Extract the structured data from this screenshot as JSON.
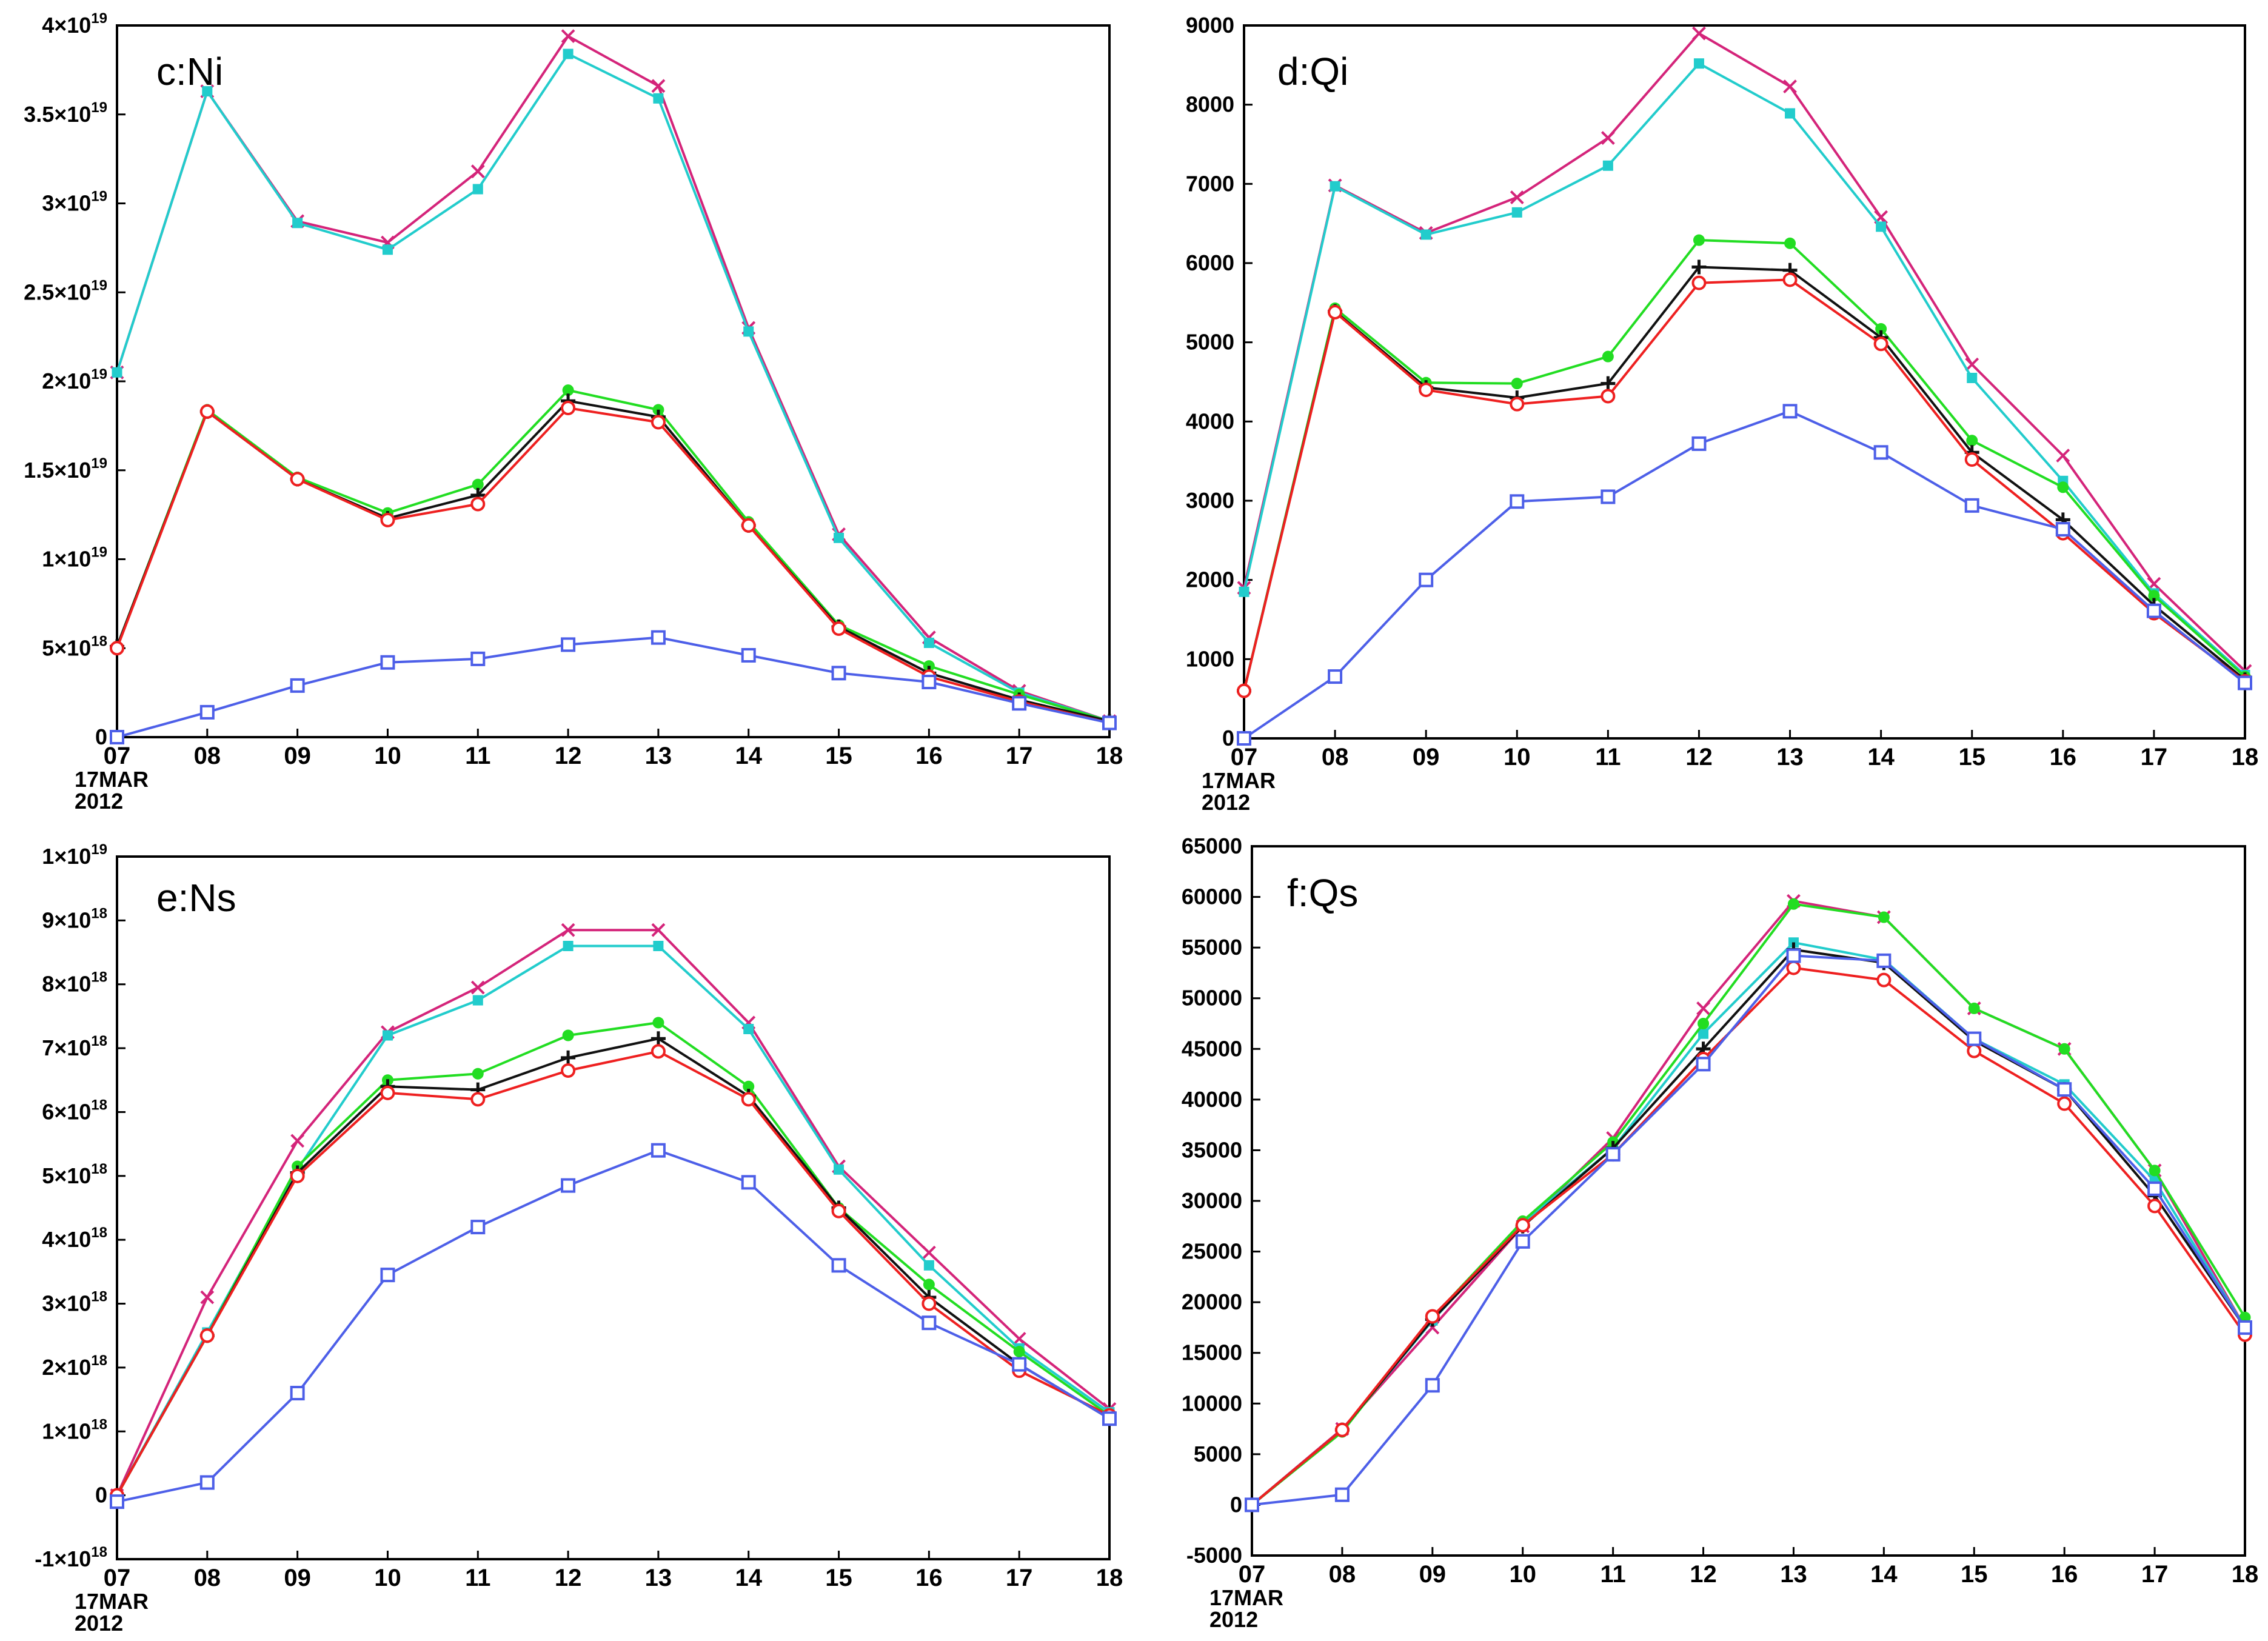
{
  "styles": {
    "series_colors": {
      "blue": "#4d5fe8",
      "red": "#ee2020",
      "black": "#111111",
      "green": "#22dd22",
      "cyan": "#22cccc",
      "magenta": "#d4247a"
    },
    "series_markers": {
      "blue": "square",
      "red": "circle",
      "black": "plus",
      "green": "dot",
      "cyan": "filled-square",
      "magenta": "x"
    }
  },
  "chart_data": [
    {
      "id": "c",
      "type": "line",
      "panel_label": "c:Ni",
      "x_ticks": [
        "07",
        "08",
        "09",
        "10",
        "11",
        "12",
        "13",
        "14",
        "15",
        "16",
        "17",
        "18"
      ],
      "x_date_line1": "17MAR",
      "x_date_line2": "2012",
      "ylim": [
        0,
        4e+19
      ],
      "y_ticks": [
        {
          "v": 0,
          "base": "0",
          "exp": ""
        },
        {
          "v": 5e+18,
          "base": "5×10",
          "exp": "18"
        },
        {
          "v": 1e+19,
          "base": "1×10",
          "exp": "19"
        },
        {
          "v": 1.5e+19,
          "base": "1.5×10",
          "exp": "19"
        },
        {
          "v": 2e+19,
          "base": "2×10",
          "exp": "19"
        },
        {
          "v": 2.5e+19,
          "base": "2.5×10",
          "exp": "19"
        },
        {
          "v": 3e+19,
          "base": "3×10",
          "exp": "19"
        },
        {
          "v": 3.5e+19,
          "base": "3.5×10",
          "exp": "19"
        },
        {
          "v": 4e+19,
          "base": "4×10",
          "exp": "19"
        }
      ],
      "series": [
        {
          "key": "magenta",
          "values": [
            2.05e+19,
            3.63e+19,
            2.9e+19,
            2.78e+19,
            3.18e+19,
            3.94e+19,
            3.66e+19,
            2.3e+19,
            1.14e+19,
            5.6e+18,
            2.6e+18,
            9e+17
          ]
        },
        {
          "key": "cyan",
          "values": [
            2.05e+19,
            3.63e+19,
            2.89e+19,
            2.74e+19,
            3.08e+19,
            3.84e+19,
            3.59e+19,
            2.28e+19,
            1.12e+19,
            5.3e+18,
            2.5e+18,
            9e+17
          ]
        },
        {
          "key": "green",
          "values": [
            5.1e+18,
            1.84e+19,
            1.46e+19,
            1.26e+19,
            1.42e+19,
            1.95e+19,
            1.84e+19,
            1.21e+19,
            6.3e+18,
            4e+18,
            2.4e+18,
            9e+17
          ]
        },
        {
          "key": "black",
          "values": [
            5.1e+18,
            1.83e+19,
            1.45e+19,
            1.23e+19,
            1.36e+19,
            1.89e+19,
            1.8e+19,
            1.19e+19,
            6.2e+18,
            3.6e+18,
            2.1e+18,
            9e+17
          ]
        },
        {
          "key": "red",
          "values": [
            5e+18,
            1.83e+19,
            1.45e+19,
            1.22e+19,
            1.31e+19,
            1.85e+19,
            1.77e+19,
            1.19e+19,
            6.1e+18,
            3.4e+18,
            2e+18,
            8e+17
          ]
        },
        {
          "key": "blue",
          "values": [
            0,
            1.4e+18,
            2.9e+18,
            4.2e+18,
            4.4e+18,
            5.2e+18,
            5.6e+18,
            4.6e+18,
            3.6e+18,
            3.1e+18,
            1.9e+18,
            8e+17
          ]
        }
      ]
    },
    {
      "id": "d",
      "type": "line",
      "panel_label": "d:Qi",
      "x_ticks": [
        "07",
        "08",
        "09",
        "10",
        "11",
        "12",
        "13",
        "14",
        "15",
        "16",
        "17",
        "18"
      ],
      "x_date_line1": "17MAR",
      "x_date_line2": "2012",
      "ylim": [
        0,
        9000
      ],
      "y_ticks": [
        {
          "v": 0,
          "base": "0",
          "exp": ""
        },
        {
          "v": 1000,
          "base": "1000",
          "exp": ""
        },
        {
          "v": 2000,
          "base": "2000",
          "exp": ""
        },
        {
          "v": 3000,
          "base": "3000",
          "exp": ""
        },
        {
          "v": 4000,
          "base": "4000",
          "exp": ""
        },
        {
          "v": 5000,
          "base": "5000",
          "exp": ""
        },
        {
          "v": 6000,
          "base": "6000",
          "exp": ""
        },
        {
          "v": 7000,
          "base": "7000",
          "exp": ""
        },
        {
          "v": 8000,
          "base": "8000",
          "exp": ""
        },
        {
          "v": 9000,
          "base": "9000",
          "exp": ""
        }
      ],
      "series": [
        {
          "key": "magenta",
          "values": [
            1900,
            6980,
            6380,
            6830,
            7580,
            8900,
            8230,
            6580,
            4720,
            3570,
            1950,
            850
          ]
        },
        {
          "key": "cyan",
          "values": [
            1850,
            6970,
            6360,
            6640,
            7230,
            8520,
            7890,
            6460,
            4550,
            3250,
            1830,
            800
          ]
        },
        {
          "key": "green",
          "values": [
            600,
            5430,
            4490,
            4480,
            4820,
            6290,
            6250,
            5170,
            3760,
            3170,
            1800,
            780
          ]
        },
        {
          "key": "black",
          "values": [
            600,
            5390,
            4430,
            4300,
            4480,
            5950,
            5910,
            5060,
            3610,
            2760,
            1680,
            740
          ]
        },
        {
          "key": "red",
          "values": [
            600,
            5380,
            4400,
            4220,
            4320,
            5750,
            5790,
            4980,
            3520,
            2590,
            1580,
            720
          ]
        },
        {
          "key": "blue",
          "values": [
            0,
            780,
            2000,
            2990,
            3050,
            3720,
            4130,
            3610,
            2940,
            2640,
            1610,
            700
          ]
        }
      ]
    },
    {
      "id": "e",
      "type": "line",
      "panel_label": "e:Ns",
      "x_ticks": [
        "07",
        "08",
        "09",
        "10",
        "11",
        "12",
        "13",
        "14",
        "15",
        "16",
        "17",
        "18"
      ],
      "x_date_line1": "17MAR",
      "x_date_line2": "2012",
      "ylim": [
        -1e+18,
        1e+19
      ],
      "y_ticks": [
        {
          "v": -1e+18,
          "base": "-1×10",
          "exp": "18"
        },
        {
          "v": 0,
          "base": "0",
          "exp": ""
        },
        {
          "v": 1e+18,
          "base": "1×10",
          "exp": "18"
        },
        {
          "v": 2e+18,
          "base": "2×10",
          "exp": "18"
        },
        {
          "v": 3e+18,
          "base": "3×10",
          "exp": "18"
        },
        {
          "v": 4e+18,
          "base": "4×10",
          "exp": "18"
        },
        {
          "v": 5e+18,
          "base": "5×10",
          "exp": "18"
        },
        {
          "v": 6e+18,
          "base": "6×10",
          "exp": "18"
        },
        {
          "v": 7e+18,
          "base": "7×10",
          "exp": "18"
        },
        {
          "v": 8e+18,
          "base": "8×10",
          "exp": "18"
        },
        {
          "v": 9e+18,
          "base": "9×10",
          "exp": "18"
        },
        {
          "v": 1e+19,
          "base": "1×10",
          "exp": "19"
        }
      ],
      "series": [
        {
          "key": "magenta",
          "values": [
            0,
            3.1e+18,
            5.55e+18,
            7.25e+18,
            7.95e+18,
            8.85e+18,
            8.85e+18,
            7.4e+18,
            5.15e+18,
            3.8e+18,
            2.45e+18,
            1.35e+18
          ]
        },
        {
          "key": "cyan",
          "values": [
            0,
            2.55e+18,
            5.1e+18,
            7.2e+18,
            7.75e+18,
            8.6e+18,
            8.6e+18,
            7.3e+18,
            5.1e+18,
            3.6e+18,
            2.3e+18,
            1.3e+18
          ]
        },
        {
          "key": "green",
          "values": [
            0,
            2.5e+18,
            5.15e+18,
            6.5e+18,
            6.6e+18,
            7.2e+18,
            7.4e+18,
            6.4e+18,
            4.5e+18,
            3.3e+18,
            2.25e+18,
            1.25e+18
          ]
        },
        {
          "key": "black",
          "values": [
            0,
            2.5e+18,
            5.05e+18,
            6.4e+18,
            6.35e+18,
            6.85e+18,
            7.15e+18,
            6.25e+18,
            4.5e+18,
            3.1e+18,
            2.05e+18,
            1.2e+18
          ]
        },
        {
          "key": "red",
          "values": [
            0,
            2.5e+18,
            5e+18,
            6.3e+18,
            6.2e+18,
            6.65e+18,
            6.95e+18,
            6.2e+18,
            4.45e+18,
            3e+18,
            1.95e+18,
            1.25e+18
          ]
        },
        {
          "key": "blue",
          "values": [
            -1e+17,
            2e+17,
            1.6e+18,
            3.45e+18,
            4.2e+18,
            4.85e+18,
            5.4e+18,
            4.9e+18,
            3.6e+18,
            2.7e+18,
            2.05e+18,
            1.2e+18
          ]
        }
      ]
    },
    {
      "id": "f",
      "type": "line",
      "panel_label": "f:Qs",
      "x_ticks": [
        "07",
        "08",
        "09",
        "10",
        "11",
        "12",
        "13",
        "14",
        "15",
        "16",
        "17",
        "18"
      ],
      "x_date_line1": "17MAR",
      "x_date_line2": "2012",
      "ylim": [
        -5000,
        65000
      ],
      "y_ticks": [
        {
          "v": -5000,
          "base": "-5000",
          "exp": ""
        },
        {
          "v": 0,
          "base": "0",
          "exp": ""
        },
        {
          "v": 5000,
          "base": "5000",
          "exp": ""
        },
        {
          "v": 10000,
          "base": "10000",
          "exp": ""
        },
        {
          "v": 15000,
          "base": "15000",
          "exp": ""
        },
        {
          "v": 20000,
          "base": "20000",
          "exp": ""
        },
        {
          "v": 25000,
          "base": "25000",
          "exp": ""
        },
        {
          "v": 30000,
          "base": "30000",
          "exp": ""
        },
        {
          "v": 35000,
          "base": "35000",
          "exp": ""
        },
        {
          "v": 40000,
          "base": "40000",
          "exp": ""
        },
        {
          "v": 45000,
          "base": "45000",
          "exp": ""
        },
        {
          "v": 50000,
          "base": "50000",
          "exp": ""
        },
        {
          "v": 55000,
          "base": "55000",
          "exp": ""
        },
        {
          "v": 60000,
          "base": "60000",
          "exp": ""
        },
        {
          "v": 65000,
          "base": "65000",
          "exp": ""
        }
      ],
      "series": [
        {
          "key": "magenta",
          "values": [
            0,
            7500,
            17500,
            27500,
            36200,
            49000,
            59600,
            58000,
            49000,
            45000,
            33000,
            17500
          ]
        },
        {
          "key": "cyan",
          "values": [
            0,
            7400,
            18200,
            27800,
            35200,
            46500,
            55500,
            53800,
            46000,
            41500,
            32000,
            17500
          ]
        },
        {
          "key": "green",
          "values": [
            0,
            7200,
            18500,
            28000,
            35800,
            47500,
            59300,
            58000,
            49000,
            45000,
            33000,
            18500
          ]
        },
        {
          "key": "black",
          "values": [
            0,
            7400,
            18300,
            27500,
            35200,
            45000,
            54800,
            53500,
            45800,
            41000,
            30500,
            17500
          ]
        },
        {
          "key": "red",
          "values": [
            0,
            7400,
            18600,
            27600,
            34600,
            44000,
            53000,
            51800,
            44800,
            39600,
            29500,
            16800
          ]
        },
        {
          "key": "blue",
          "values": [
            0,
            1000,
            11800,
            26000,
            34600,
            43500,
            54200,
            53700,
            46000,
            41000,
            31200,
            17500
          ]
        }
      ]
    }
  ]
}
